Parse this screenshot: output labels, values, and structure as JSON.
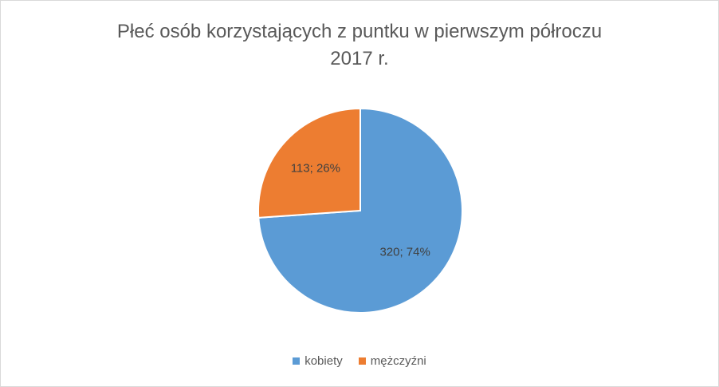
{
  "chart_data": {
    "type": "pie",
    "title": "Płeć osób korzystających z puntku w pierwszym półroczu\n2017 r.",
    "categories": [
      "kobiety",
      "mężczyźni"
    ],
    "values": [
      320,
      113
    ],
    "value_labels": [
      "320; 74%",
      "113; 26%"
    ],
    "colors": [
      "#5b9bd5",
      "#ed7d31"
    ],
    "legend": "bottom"
  }
}
